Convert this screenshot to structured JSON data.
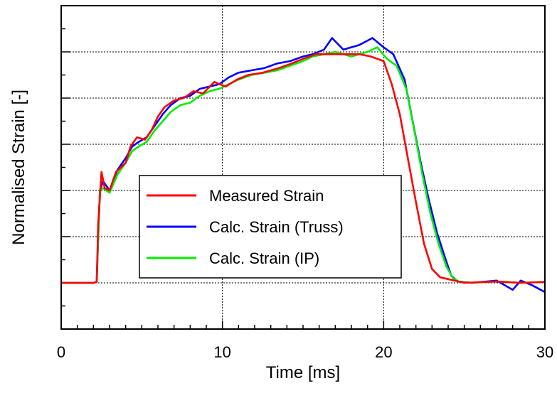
{
  "chart_data": {
    "type": "line",
    "title": "",
    "xlabel": "Time [ms]",
    "ylabel": "Normalised Strain [-]",
    "xlim": [
      0,
      30
    ],
    "ylim": [
      -1,
      6
    ],
    "x_ticks": [
      0,
      10,
      20,
      30
    ],
    "x_tick_labels": [
      "0",
      "10",
      "20",
      "30"
    ],
    "y_tick_labels_shown": false,
    "grid": true,
    "legend_position": "center-left inside plot",
    "series": [
      {
        "name": "Measured Strain",
        "color": "#ff0000",
        "points": [
          [
            0,
            0
          ],
          [
            2,
            0
          ],
          [
            2.2,
            0.02
          ],
          [
            2.3,
            1.3
          ],
          [
            2.5,
            2.4
          ],
          [
            2.7,
            2.05
          ],
          [
            3.0,
            2.0
          ],
          [
            3.4,
            2.4
          ],
          [
            4.0,
            2.6
          ],
          [
            4.3,
            2.95
          ],
          [
            4.7,
            3.15
          ],
          [
            5.2,
            3.1
          ],
          [
            5.6,
            3.3
          ],
          [
            6.0,
            3.6
          ],
          [
            6.4,
            3.8
          ],
          [
            7.0,
            3.95
          ],
          [
            7.6,
            4.0
          ],
          [
            8.2,
            4.15
          ],
          [
            8.8,
            4.1
          ],
          [
            9.5,
            4.35
          ],
          [
            10.2,
            4.25
          ],
          [
            10.9,
            4.4
          ],
          [
            11.6,
            4.5
          ],
          [
            12.5,
            4.55
          ],
          [
            13.5,
            4.65
          ],
          [
            14.3,
            4.75
          ],
          [
            15.0,
            4.85
          ],
          [
            15.8,
            4.95
          ],
          [
            16.5,
            4.95
          ],
          [
            17.5,
            4.95
          ],
          [
            18.5,
            4.95
          ],
          [
            19.2,
            4.9
          ],
          [
            20.0,
            4.8
          ],
          [
            20.5,
            4.3
          ],
          [
            21.0,
            3.65
          ],
          [
            21.5,
            2.7
          ],
          [
            22.0,
            1.75
          ],
          [
            22.5,
            0.85
          ],
          [
            23.0,
            0.3
          ],
          [
            23.5,
            0.12
          ],
          [
            24.0,
            0.08
          ],
          [
            25.0,
            0.0
          ],
          [
            27.0,
            0.03
          ],
          [
            28.5,
            0.0
          ],
          [
            30.0,
            0.02
          ]
        ]
      },
      {
        "name": "Calc. Strain (Truss)",
        "color": "#0000ff",
        "points": [
          [
            0,
            0
          ],
          [
            2,
            0
          ],
          [
            2.2,
            0.02
          ],
          [
            2.4,
            2.0
          ],
          [
            2.6,
            2.2
          ],
          [
            3.0,
            2.0
          ],
          [
            3.5,
            2.45
          ],
          [
            4.0,
            2.7
          ],
          [
            4.4,
            2.95
          ],
          [
            4.8,
            3.05
          ],
          [
            5.3,
            3.15
          ],
          [
            5.8,
            3.4
          ],
          [
            6.3,
            3.65
          ],
          [
            6.8,
            3.85
          ],
          [
            7.4,
            4.0
          ],
          [
            8.0,
            4.05
          ],
          [
            8.6,
            4.2
          ],
          [
            9.2,
            4.25
          ],
          [
            9.8,
            4.3
          ],
          [
            10.4,
            4.45
          ],
          [
            11.0,
            4.55
          ],
          [
            11.8,
            4.6
          ],
          [
            12.6,
            4.65
          ],
          [
            13.4,
            4.75
          ],
          [
            14.2,
            4.8
          ],
          [
            15.0,
            4.9
          ],
          [
            15.6,
            4.95
          ],
          [
            16.3,
            5.05
          ],
          [
            16.8,
            5.3
          ],
          [
            17.5,
            5.05
          ],
          [
            18.5,
            5.15
          ],
          [
            19.3,
            5.3
          ],
          [
            20.0,
            5.1
          ],
          [
            20.6,
            4.95
          ],
          [
            21.3,
            4.4
          ],
          [
            21.8,
            3.5
          ],
          [
            22.3,
            2.6
          ],
          [
            22.8,
            1.8
          ],
          [
            23.3,
            1.1
          ],
          [
            23.8,
            0.55
          ],
          [
            24.2,
            0.15
          ],
          [
            24.6,
            0.03
          ],
          [
            25.5,
            0.0
          ],
          [
            27.0,
            0.05
          ],
          [
            28.0,
            -0.15
          ],
          [
            28.5,
            0.05
          ],
          [
            29.2,
            -0.05
          ],
          [
            30.0,
            -0.2
          ]
        ]
      },
      {
        "name": "Calc. Strain (IP)",
        "color": "#00ee00",
        "points": [
          [
            0,
            0
          ],
          [
            2,
            0
          ],
          [
            2.2,
            0.02
          ],
          [
            2.4,
            2.0
          ],
          [
            2.6,
            2.05
          ],
          [
            3.0,
            1.95
          ],
          [
            3.5,
            2.35
          ],
          [
            4.0,
            2.6
          ],
          [
            4.4,
            2.85
          ],
          [
            4.8,
            2.95
          ],
          [
            5.3,
            3.05
          ],
          [
            5.8,
            3.3
          ],
          [
            6.3,
            3.5
          ],
          [
            6.8,
            3.7
          ],
          [
            7.4,
            3.85
          ],
          [
            8.0,
            3.9
          ],
          [
            8.6,
            4.05
          ],
          [
            9.2,
            4.15
          ],
          [
            9.8,
            4.2
          ],
          [
            10.4,
            4.3
          ],
          [
            11.0,
            4.4
          ],
          [
            11.8,
            4.5
          ],
          [
            12.6,
            4.55
          ],
          [
            13.4,
            4.6
          ],
          [
            14.2,
            4.7
          ],
          [
            15.0,
            4.8
          ],
          [
            15.6,
            4.9
          ],
          [
            16.3,
            4.95
          ],
          [
            17.0,
            5.0
          ],
          [
            18.0,
            4.9
          ],
          [
            19.0,
            5.0
          ],
          [
            19.6,
            5.1
          ],
          [
            20.2,
            4.85
          ],
          [
            20.8,
            4.7
          ],
          [
            21.4,
            4.2
          ],
          [
            21.9,
            3.3
          ],
          [
            22.4,
            2.35
          ],
          [
            22.9,
            1.5
          ],
          [
            23.4,
            0.85
          ],
          [
            23.9,
            0.35
          ],
          [
            24.3,
            0.1
          ],
          [
            24.7,
            0.02
          ],
          [
            25.5,
            0.0
          ],
          [
            27.0,
            0.03
          ],
          [
            28.5,
            0.0
          ],
          [
            30.0,
            0.02
          ]
        ]
      }
    ]
  }
}
